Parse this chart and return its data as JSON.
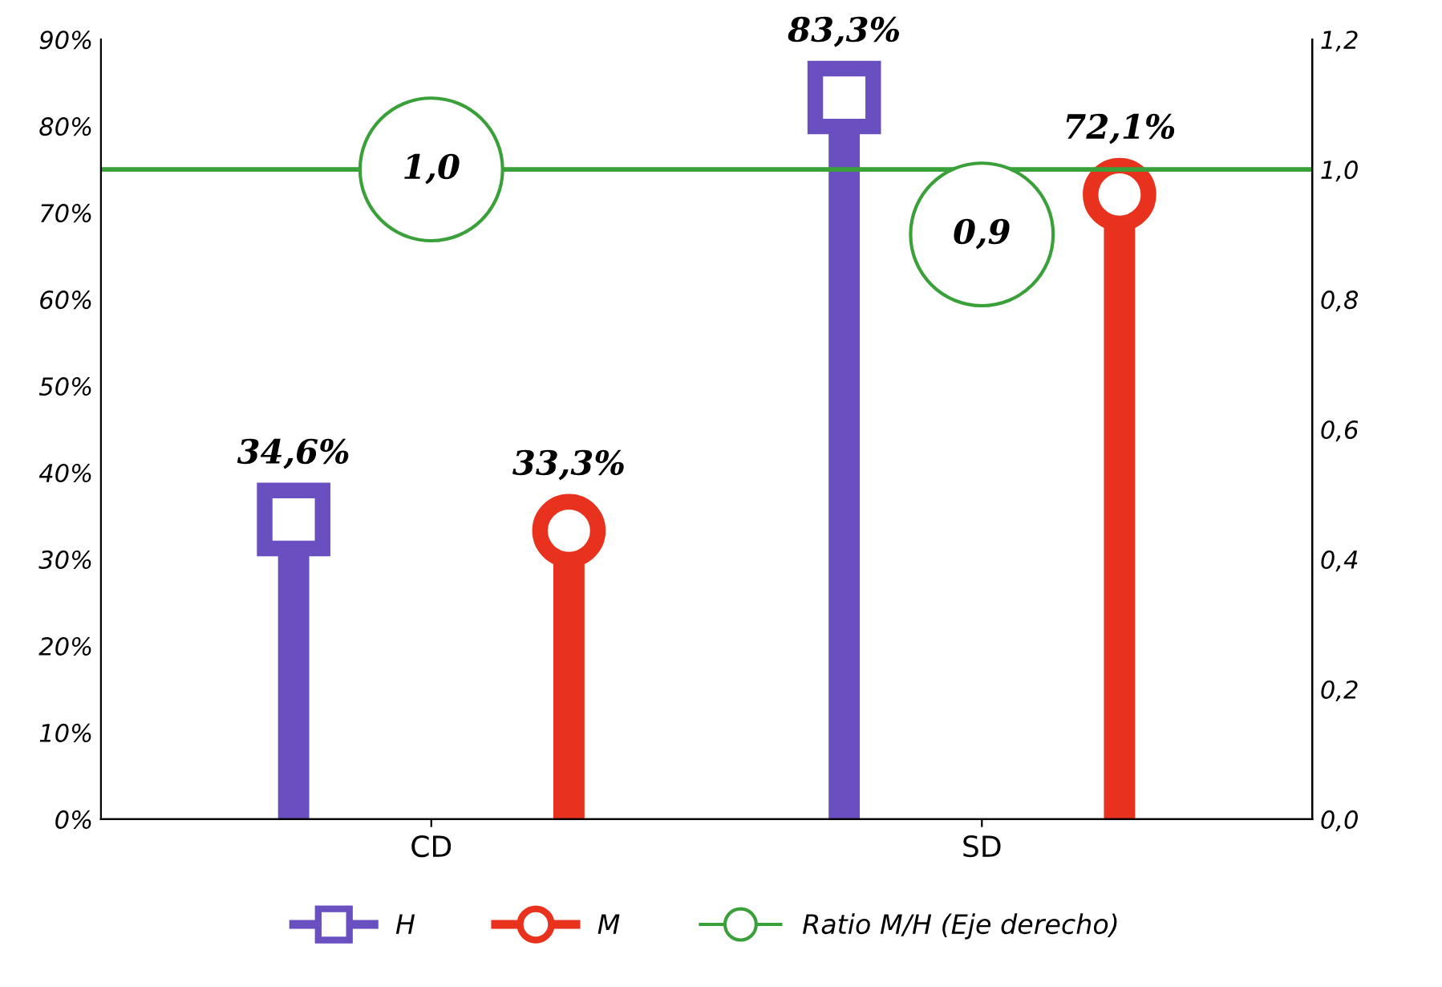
{
  "chart_data": {
    "type": "lollipop",
    "categories": [
      "CD",
      "SD"
    ],
    "series": [
      {
        "name": "H",
        "color": "#6a4fc0",
        "marker": "square",
        "values": [
          34.6,
          83.3
        ],
        "value_labels": [
          "34,6%",
          "83,3%"
        ]
      },
      {
        "name": "M",
        "color": "#e8321e",
        "marker": "circle",
        "values": [
          33.3,
          72.1
        ],
        "value_labels": [
          "33,3%",
          "72,1%"
        ]
      },
      {
        "name": "Ratio M/H (Eje derecho)",
        "type": "scatter",
        "axis": "y2",
        "color": "#3aa03a",
        "marker": "circle",
        "values": [
          1.0,
          0.9
        ],
        "value_labels": [
          "1,0",
          "0,9"
        ]
      }
    ],
    "ylim": [
      0,
      90
    ],
    "yticks": [
      {
        "value": 0,
        "label": "0%"
      },
      {
        "value": 10,
        "label": "10%"
      },
      {
        "value": 20,
        "label": "20%"
      },
      {
        "value": 30,
        "label": "30%"
      },
      {
        "value": 40,
        "label": "40%"
      },
      {
        "value": 50,
        "label": "50%"
      },
      {
        "value": 60,
        "label": "60%"
      },
      {
        "value": 70,
        "label": "70%"
      },
      {
        "value": 80,
        "label": "80%"
      },
      {
        "value": 90,
        "label": "90%"
      }
    ],
    "y2lim": [
      0,
      1.2
    ],
    "y2ticks": [
      {
        "value": 0,
        "label": "0,0"
      },
      {
        "value": 0.2,
        "label": "0,2"
      },
      {
        "value": 0.4,
        "label": "0,4"
      },
      {
        "value": 0.6,
        "label": "0,6"
      },
      {
        "value": 0.8,
        "label": "0,8"
      },
      {
        "value": 1.0,
        "label": "1,0"
      },
      {
        "value": 1.2,
        "label": "1,2"
      }
    ],
    "ref_lines": [
      {
        "axis": "y2",
        "value": 1.0,
        "color": "#3aa03a"
      }
    ],
    "grid": false,
    "legend": "bottom"
  }
}
